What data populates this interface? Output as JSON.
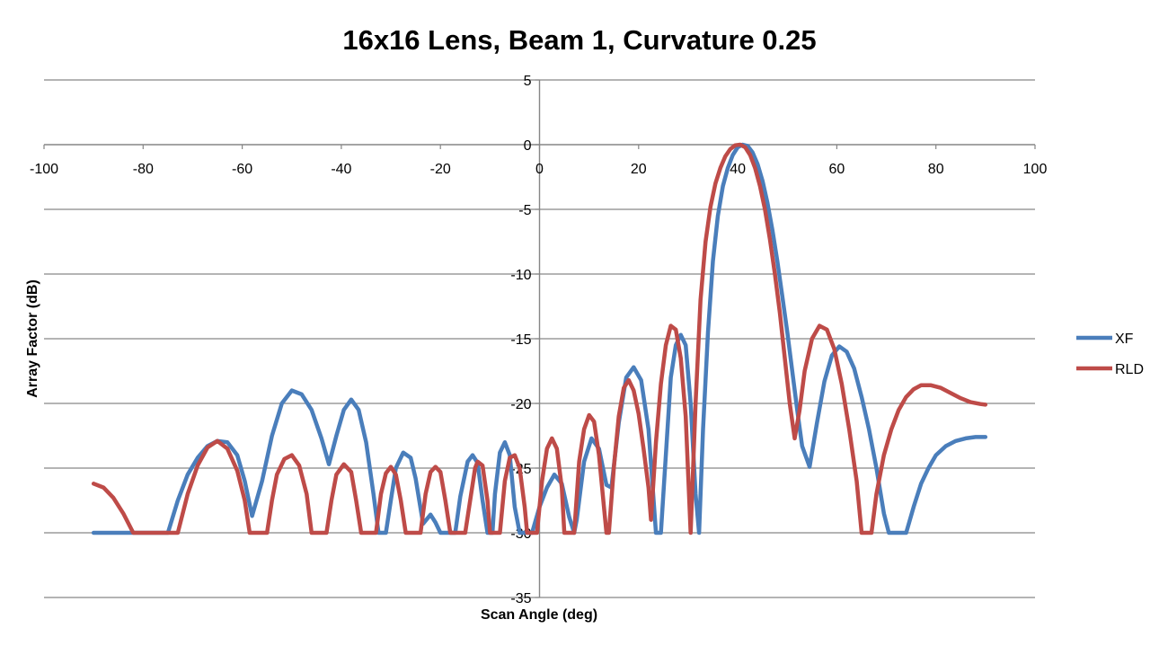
{
  "chart_data": {
    "type": "line",
    "title": "16x16 Lens, Beam 1, Curvature 0.25",
    "xlabel": "Scan Angle (deg)",
    "ylabel": "Array Factor (dB)",
    "xlim": [
      -100,
      100
    ],
    "ylim": [
      -35,
      5
    ],
    "x_ticks": [
      -100,
      -80,
      -60,
      -40,
      -20,
      0,
      20,
      40,
      60,
      80,
      100
    ],
    "y_ticks": [
      5,
      0,
      -5,
      -10,
      -15,
      -20,
      -25,
      -30,
      -35
    ],
    "grid": "horizontal",
    "legend_position": "right",
    "series": [
      {
        "name": "XF",
        "color": "#4a7ebb",
        "points": [
          [
            -90,
            -30
          ],
          [
            -75,
            -30
          ],
          [
            -73,
            -27.5
          ],
          [
            -71,
            -25.5
          ],
          [
            -69,
            -24.2
          ],
          [
            -67,
            -23.3
          ],
          [
            -65,
            -22.9
          ],
          [
            -63,
            -23.0
          ],
          [
            -61,
            -24.0
          ],
          [
            -59.5,
            -26.0
          ],
          [
            -58,
            -28.7
          ],
          [
            -56,
            -26.0
          ],
          [
            -54,
            -22.5
          ],
          [
            -52,
            -20.0
          ],
          [
            -50,
            -19.0
          ],
          [
            -48,
            -19.3
          ],
          [
            -46,
            -20.5
          ],
          [
            -44,
            -22.7
          ],
          [
            -42.5,
            -24.7
          ],
          [
            -41,
            -22.5
          ],
          [
            -39.5,
            -20.5
          ],
          [
            -38,
            -19.7
          ],
          [
            -36.5,
            -20.5
          ],
          [
            -35,
            -23.0
          ],
          [
            -33.5,
            -27.0
          ],
          [
            -32.5,
            -30
          ],
          [
            -31,
            -30
          ],
          [
            -30,
            -27.5
          ],
          [
            -29,
            -25.0
          ],
          [
            -27.5,
            -23.8
          ],
          [
            -26,
            -24.2
          ],
          [
            -25,
            -25.8
          ],
          [
            -23.5,
            -29.3
          ],
          [
            -22,
            -28.6
          ],
          [
            -21,
            -29.2
          ],
          [
            -20,
            -30
          ],
          [
            -17,
            -30
          ],
          [
            -16,
            -27.2
          ],
          [
            -14.5,
            -24.5
          ],
          [
            -13.5,
            -24.0
          ],
          [
            -12.5,
            -24.6
          ],
          [
            -11.5,
            -27.5
          ],
          [
            -10.5,
            -30
          ],
          [
            -9.5,
            -30
          ],
          [
            -9,
            -27.0
          ],
          [
            -8,
            -23.8
          ],
          [
            -7,
            -23.0
          ],
          [
            -6,
            -24.0
          ],
          [
            -5,
            -28.0
          ],
          [
            -4,
            -30
          ],
          [
            -1.5,
            -30
          ],
          [
            0,
            -28.0
          ],
          [
            1.5,
            -26.5
          ],
          [
            3,
            -25.5
          ],
          [
            4.5,
            -26.2
          ],
          [
            6,
            -28.8
          ],
          [
            7,
            -30
          ],
          [
            7.5,
            -29.0
          ],
          [
            9,
            -24.5
          ],
          [
            10.5,
            -22.7
          ],
          [
            12,
            -23.5
          ],
          [
            13.5,
            -26.3
          ],
          [
            14.5,
            -26.5
          ],
          [
            16,
            -21.5
          ],
          [
            17.5,
            -18.0
          ],
          [
            19,
            -17.2
          ],
          [
            20.5,
            -18.2
          ],
          [
            22,
            -22.0
          ],
          [
            23.5,
            -30
          ],
          [
            24.5,
            -30
          ],
          [
            25.5,
            -24.0
          ],
          [
            26.5,
            -18.0
          ],
          [
            27.5,
            -15.5
          ],
          [
            28.5,
            -14.7
          ],
          [
            29.5,
            -15.5
          ],
          [
            30.5,
            -20.0
          ],
          [
            31.5,
            -27.0
          ],
          [
            32.2,
            -30
          ],
          [
            33,
            -22.0
          ],
          [
            34,
            -14.5
          ],
          [
            35,
            -9.0
          ],
          [
            36,
            -5.5
          ],
          [
            37,
            -3.2
          ],
          [
            38,
            -1.8
          ],
          [
            39,
            -0.8
          ],
          [
            40,
            -0.2
          ],
          [
            41,
            0
          ],
          [
            42,
            -0.1
          ],
          [
            43,
            -0.6
          ],
          [
            44,
            -1.5
          ],
          [
            45,
            -2.8
          ],
          [
            46,
            -4.5
          ],
          [
            47,
            -6.6
          ],
          [
            48,
            -9.0
          ],
          [
            49,
            -11.7
          ],
          [
            50,
            -14.5
          ],
          [
            51,
            -17.5
          ],
          [
            52,
            -20.5
          ],
          [
            53,
            -23.3
          ],
          [
            54.5,
            -24.9
          ],
          [
            56,
            -21.5
          ],
          [
            57.5,
            -18.3
          ],
          [
            59,
            -16.3
          ],
          [
            60.5,
            -15.6
          ],
          [
            62,
            -16.0
          ],
          [
            63.5,
            -17.3
          ],
          [
            65,
            -19.5
          ],
          [
            66.5,
            -22.0
          ],
          [
            68,
            -25.0
          ],
          [
            69.5,
            -28.5
          ],
          [
            70.5,
            -30
          ],
          [
            74,
            -30
          ],
          [
            75.5,
            -28.0
          ],
          [
            77,
            -26.2
          ],
          [
            78.5,
            -25.0
          ],
          [
            80,
            -24.0
          ],
          [
            82,
            -23.3
          ],
          [
            84,
            -22.9
          ],
          [
            86,
            -22.7
          ],
          [
            88,
            -22.6
          ],
          [
            90,
            -22.6
          ]
        ]
      },
      {
        "name": "RLD",
        "color": "#be4b48",
        "points": [
          [
            -90,
            -26.2
          ],
          [
            -88,
            -26.5
          ],
          [
            -86,
            -27.3
          ],
          [
            -84,
            -28.5
          ],
          [
            -82,
            -30
          ],
          [
            -73,
            -30
          ],
          [
            -71,
            -27.0
          ],
          [
            -69,
            -24.8
          ],
          [
            -67,
            -23.4
          ],
          [
            -65,
            -22.9
          ],
          [
            -63,
            -23.5
          ],
          [
            -61,
            -25.2
          ],
          [
            -59.5,
            -27.5
          ],
          [
            -58.5,
            -30
          ],
          [
            -55,
            -30
          ],
          [
            -54,
            -27.5
          ],
          [
            -53,
            -25.5
          ],
          [
            -51.5,
            -24.3
          ],
          [
            -50,
            -24.0
          ],
          [
            -48.5,
            -24.8
          ],
          [
            -47,
            -27.0
          ],
          [
            -46,
            -30
          ],
          [
            -43,
            -30
          ],
          [
            -42,
            -27.5
          ],
          [
            -41,
            -25.5
          ],
          [
            -39.5,
            -24.7
          ],
          [
            -38,
            -25.3
          ],
          [
            -37,
            -27.5
          ],
          [
            -36,
            -30
          ],
          [
            -33,
            -30
          ],
          [
            -32,
            -27.0
          ],
          [
            -31,
            -25.4
          ],
          [
            -30,
            -24.9
          ],
          [
            -29,
            -25.5
          ],
          [
            -28,
            -27.5
          ],
          [
            -27,
            -30
          ],
          [
            -24,
            -30
          ],
          [
            -23,
            -27.0
          ],
          [
            -22,
            -25.3
          ],
          [
            -21,
            -24.9
          ],
          [
            -20,
            -25.3
          ],
          [
            -19,
            -27.5
          ],
          [
            -18,
            -30
          ],
          [
            -15,
            -30
          ],
          [
            -14,
            -27.5
          ],
          [
            -13,
            -25.0
          ],
          [
            -12.5,
            -24.5
          ],
          [
            -11.5,
            -24.8
          ],
          [
            -10.5,
            -27.5
          ],
          [
            -10,
            -30
          ],
          [
            -8,
            -30
          ],
          [
            -7,
            -26.0
          ],
          [
            -6,
            -24.2
          ],
          [
            -5,
            -24.0
          ],
          [
            -4,
            -25.0
          ],
          [
            -3,
            -28.0
          ],
          [
            -2.5,
            -30
          ],
          [
            -0.5,
            -30
          ],
          [
            0.5,
            -26.0
          ],
          [
            1.5,
            -23.5
          ],
          [
            2.5,
            -22.7
          ],
          [
            3.5,
            -23.5
          ],
          [
            4.5,
            -26.5
          ],
          [
            5,
            -30
          ],
          [
            7,
            -30
          ],
          [
            8,
            -24.5
          ],
          [
            9,
            -22.0
          ],
          [
            10,
            -20.9
          ],
          [
            11,
            -21.4
          ],
          [
            12,
            -24.0
          ],
          [
            13,
            -28.0
          ],
          [
            13.5,
            -30
          ],
          [
            14,
            -30
          ],
          [
            15,
            -25.0
          ],
          [
            16,
            -21.0
          ],
          [
            17,
            -18.8
          ],
          [
            18,
            -18.2
          ],
          [
            19,
            -19.0
          ],
          [
            20,
            -20.8
          ],
          [
            21,
            -23.5
          ],
          [
            22,
            -26.5
          ],
          [
            22.5,
            -29.0
          ],
          [
            23.5,
            -23.0
          ],
          [
            24.5,
            -18.5
          ],
          [
            25.5,
            -15.5
          ],
          [
            26.5,
            -14.0
          ],
          [
            27.5,
            -14.3
          ],
          [
            28.5,
            -16.5
          ],
          [
            29.5,
            -21.0
          ],
          [
            30.5,
            -30
          ],
          [
            31.5,
            -20.0
          ],
          [
            32.5,
            -12.0
          ],
          [
            33.5,
            -7.5
          ],
          [
            34.5,
            -4.8
          ],
          [
            35.5,
            -3.0
          ],
          [
            36.5,
            -1.8
          ],
          [
            37.5,
            -0.9
          ],
          [
            38.5,
            -0.35
          ],
          [
            39.5,
            -0.05
          ],
          [
            40.5,
            0
          ],
          [
            41.5,
            -0.2
          ],
          [
            42.5,
            -0.8
          ],
          [
            43.5,
            -1.8
          ],
          [
            44.5,
            -3.2
          ],
          [
            45.5,
            -5.0
          ],
          [
            46.5,
            -7.3
          ],
          [
            47.5,
            -10.0
          ],
          [
            48.5,
            -13.0
          ],
          [
            49.5,
            -16.5
          ],
          [
            50.5,
            -20.0
          ],
          [
            51.5,
            -22.7
          ],
          [
            52.5,
            -20.5
          ],
          [
            53.5,
            -17.5
          ],
          [
            55,
            -15.0
          ],
          [
            56.5,
            -14.0
          ],
          [
            58,
            -14.3
          ],
          [
            59.5,
            -15.8
          ],
          [
            61,
            -18.5
          ],
          [
            62.5,
            -22.0
          ],
          [
            64,
            -26.0
          ],
          [
            65,
            -30
          ],
          [
            67,
            -30
          ],
          [
            68,
            -27.0
          ],
          [
            69.5,
            -24.0
          ],
          [
            71,
            -22.0
          ],
          [
            72.5,
            -20.5
          ],
          [
            74,
            -19.5
          ],
          [
            75.5,
            -18.9
          ],
          [
            77,
            -18.6
          ],
          [
            79,
            -18.6
          ],
          [
            81,
            -18.8
          ],
          [
            83,
            -19.2
          ],
          [
            85,
            -19.6
          ],
          [
            87,
            -19.9
          ],
          [
            89,
            -20.05
          ],
          [
            90,
            -20.1
          ]
        ]
      }
    ]
  }
}
